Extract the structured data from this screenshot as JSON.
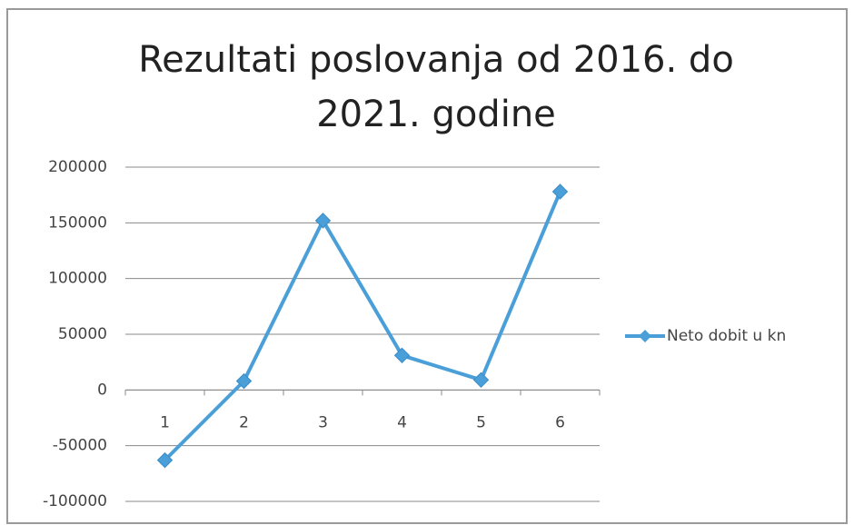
{
  "chart_data": {
    "type": "line",
    "title": "Rezultati poslovanja od 2016. do 2021. godine",
    "categories": [
      "1",
      "2",
      "3",
      "4",
      "5",
      "6"
    ],
    "series": [
      {
        "name": "Neto dobit u kn",
        "color": "#4a9fd9",
        "values": [
          -63000,
          8000,
          152000,
          31000,
          9000,
          178000
        ]
      }
    ],
    "ylim": [
      -100000,
      200000
    ],
    "yticks": [
      -100000,
      -50000,
      0,
      50000,
      100000,
      150000,
      200000
    ],
    "grid": true,
    "legend": "right"
  }
}
